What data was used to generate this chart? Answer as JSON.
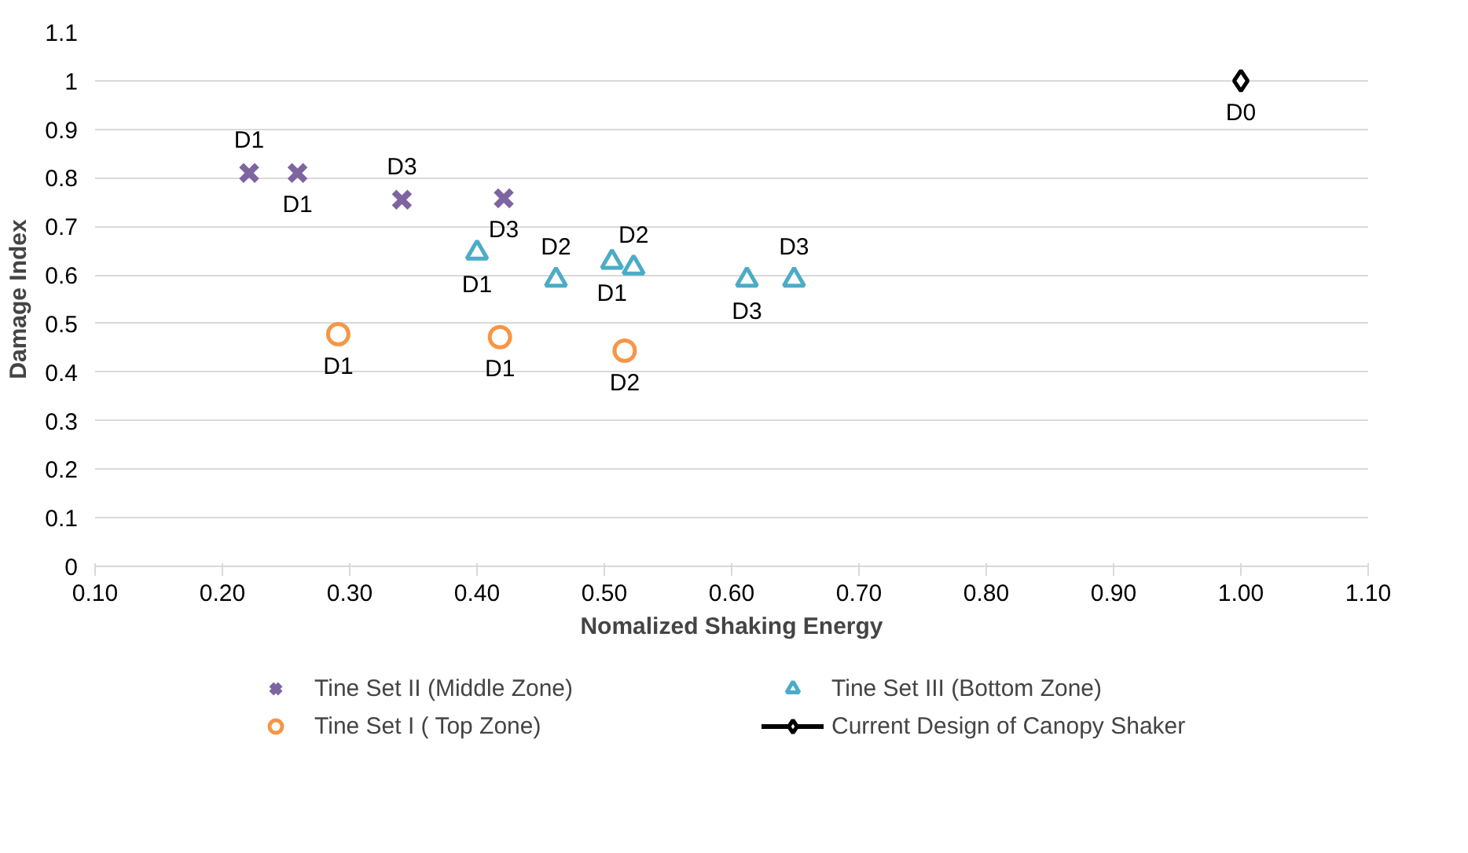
{
  "chart_data": {
    "type": "scatter",
    "xlabel": "Nomalized Shaking Energy",
    "ylabel": "Damage Index",
    "xlim": [
      0.1,
      1.1
    ],
    "ylim": [
      0,
      1.1
    ],
    "xticks": [
      {
        "value": 0.1,
        "label": "0.10"
      },
      {
        "value": 0.2,
        "label": "0.20"
      },
      {
        "value": 0.3,
        "label": "0.30"
      },
      {
        "value": 0.4,
        "label": "0.40"
      },
      {
        "value": 0.5,
        "label": "0.50"
      },
      {
        "value": 0.6,
        "label": "0.60"
      },
      {
        "value": 0.7,
        "label": "0.70"
      },
      {
        "value": 0.8,
        "label": "0.80"
      },
      {
        "value": 0.9,
        "label": "0.90"
      },
      {
        "value": 1.0,
        "label": "1.00"
      },
      {
        "value": 1.1,
        "label": "1.10"
      }
    ],
    "yticks": [
      0,
      0.1,
      0.2,
      0.3,
      0.4,
      0.5,
      0.6,
      0.7,
      0.8,
      0.9,
      1,
      1.1
    ],
    "grid": "y",
    "legend": "bottom",
    "series": [
      {
        "name": "Tine Set II (Middle Zone)",
        "color": "#7e64a0",
        "marker": "cross",
        "x": [
          0.221,
          0.259,
          0.341,
          0.421
        ],
        "values": [
          0.81,
          0.81,
          0.755,
          0.758
        ],
        "value_labels": [
          "D1",
          "D1",
          "D3",
          "D3"
        ]
      },
      {
        "name": "Tine Set III (Bottom Zone)",
        "color": "#4bacc6",
        "marker": "triangle",
        "x": [
          0.4,
          0.462,
          0.506,
          0.523,
          0.612,
          0.649
        ],
        "values": [
          0.646,
          0.59,
          0.627,
          0.615,
          0.59,
          0.59
        ],
        "value_labels": [
          "D1",
          "D2",
          "D1",
          "D2",
          "D3",
          "D3"
        ]
      },
      {
        "name": "Tine Set I ( Top Zone)",
        "color": "#f79646",
        "marker": "circle",
        "x": [
          0.291,
          0.418,
          0.516
        ],
        "values": [
          0.478,
          0.472,
          0.444
        ],
        "value_labels": [
          "D1",
          "D1",
          "D2"
        ]
      },
      {
        "name": "Current Design of Canopy Shaker",
        "color": "#000000",
        "type": "line",
        "marker": "diamond",
        "x": [
          1.0
        ],
        "values": [
          1.0
        ],
        "value_labels": [
          "D0"
        ]
      }
    ]
  }
}
